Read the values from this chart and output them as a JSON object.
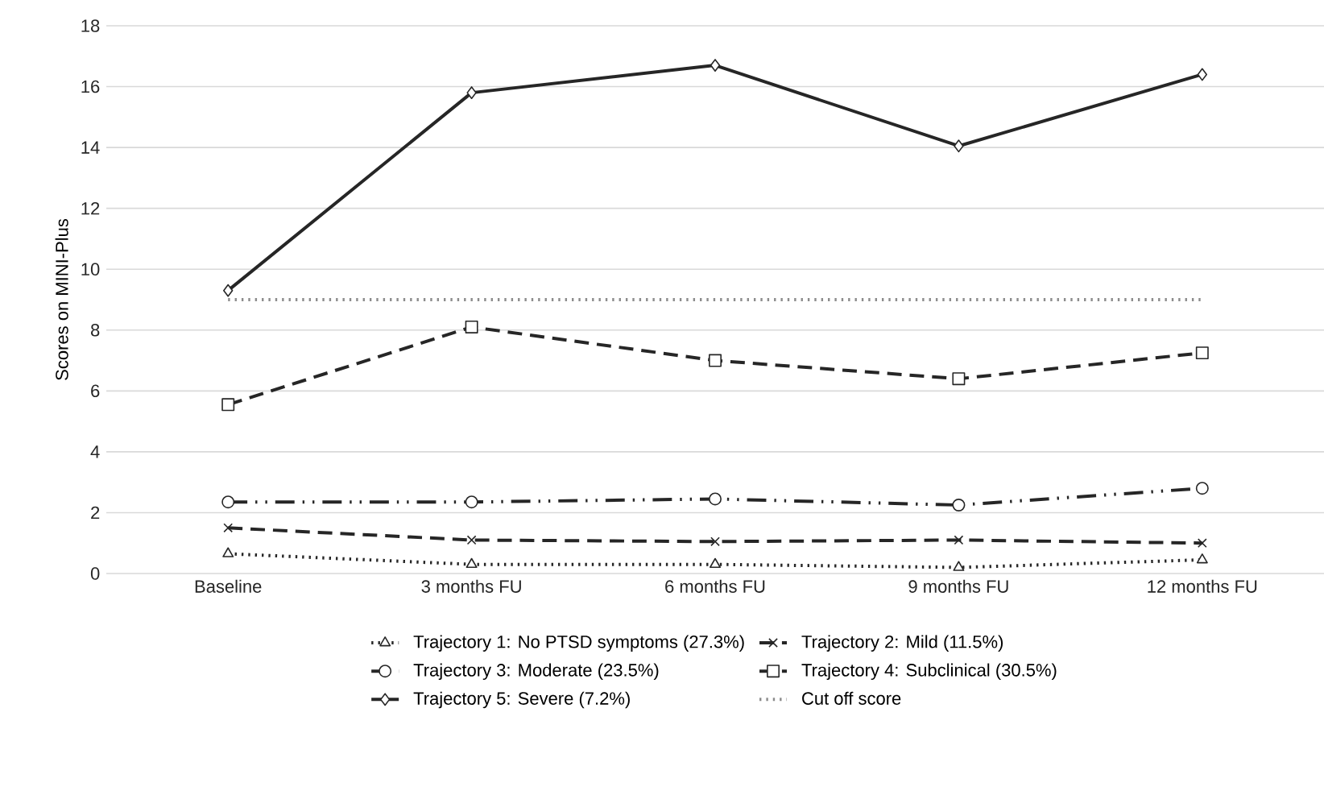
{
  "chart_data": {
    "type": "line",
    "ylabel": "Scores on MINI-Plus",
    "categories": [
      "Baseline",
      "3 months FU",
      "6 months FU",
      "9 months FU",
      "12 months FU"
    ],
    "ylim": [
      0,
      18
    ],
    "yticks": [
      0,
      2,
      4,
      6,
      8,
      10,
      12,
      14,
      16,
      18
    ],
    "grid": "y",
    "legend": "bottom",
    "series": [
      {
        "name": "Trajectory 1: No PTSD symptoms (27.3%)",
        "color": "#262626",
        "marker": "triangle",
        "line_style": "dotted",
        "values": [
          0.65,
          0.3,
          0.3,
          0.2,
          0.45
        ]
      },
      {
        "name": "Trajectory 2: Mild (11.5%)",
        "color": "#262626",
        "marker": "cross",
        "line_style": "dashed",
        "values": [
          1.5,
          1.1,
          1.05,
          1.1,
          1.0
        ]
      },
      {
        "name": "Trajectory 3: Moderate (23.5%)",
        "color": "#262626",
        "marker": "circle",
        "line_style": "dashdot",
        "values": [
          2.35,
          2.35,
          2.45,
          2.25,
          2.8
        ]
      },
      {
        "name": "Trajectory 4: Subclinical (30.5%)",
        "color": "#262626",
        "marker": "square",
        "line_style": "dashed",
        "values": [
          5.55,
          8.1,
          7.0,
          6.4,
          7.25
        ]
      },
      {
        "name": "Trajectory 5: Severe (7.2%)",
        "color": "#262626",
        "marker": "diamond",
        "line_style": "solid",
        "values": [
          9.3,
          15.8,
          16.7,
          14.05,
          16.4
        ]
      },
      {
        "name": "Cut off score",
        "color": "#8c8c8c",
        "marker": "none",
        "line_style": "dotted",
        "values": [
          9,
          9,
          9,
          9,
          9
        ]
      }
    ]
  }
}
